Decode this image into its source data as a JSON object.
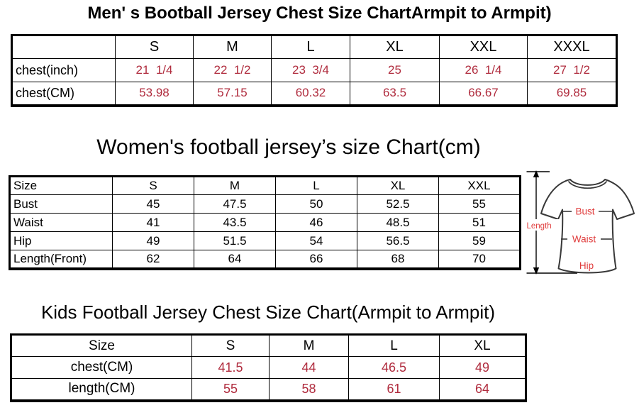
{
  "colors": {
    "value_red": "#b02c3e",
    "label_red": "#e03c3c",
    "outline_dark": "#383838",
    "text_black": "#000000",
    "background": "#ffffff"
  },
  "titles": {
    "men": "Men' s Bootball Jersey Chest Size ChartArmpit to Armpit)",
    "women": "Women's football jersey’s size Chart(cm)",
    "kids": "Kids Football Jersey Chest Size Chart(Armpit to Armpit)"
  },
  "tables": {
    "men": {
      "columns": [
        "",
        "S",
        "M",
        "L",
        "XL",
        "XXL",
        "XXXL"
      ],
      "rows": [
        {
          "label": "chest(inch)",
          "values": [
            "21  1/4",
            "22  1/2",
            "23  3/4",
            "25",
            "26  1/4",
            "27  1/2"
          ],
          "value_color": "value_red"
        },
        {
          "label": "chest(CM)",
          "values": [
            "53.98",
            "57.15",
            "60.32",
            "63.5",
            "66.67",
            "69.85"
          ],
          "value_color": "value_red"
        }
      ]
    },
    "women": {
      "columns": [
        "Size",
        "S",
        "M",
        "L",
        "XL",
        "XXL"
      ],
      "rows": [
        {
          "label": "Bust",
          "values": [
            "45",
            "47.5",
            "50",
            "52.5",
            "55"
          ],
          "value_color": "text_black"
        },
        {
          "label": "Waist",
          "values": [
            "41",
            "43.5",
            "46",
            "48.5",
            "51"
          ],
          "value_color": "text_black"
        },
        {
          "label": "Hip",
          "values": [
            "49",
            "51.5",
            "54",
            "56.5",
            "59"
          ],
          "value_color": "text_black"
        },
        {
          "label": "Length(Front)",
          "values": [
            "62",
            "64",
            "66",
            "68",
            "70"
          ],
          "value_color": "text_black"
        }
      ]
    },
    "kids": {
      "columns": [
        "Size",
        "S",
        "M",
        "L",
        "XL"
      ],
      "rows": [
        {
          "label": "chest(CM)",
          "values": [
            "41.5",
            "44",
            "46.5",
            "49"
          ],
          "value_color": "value_red"
        },
        {
          "label": "length(CM)",
          "values": [
            "55",
            "58",
            "61",
            "64"
          ],
          "value_color": "value_red"
        }
      ]
    }
  },
  "diagram": {
    "length_label": "Length",
    "bust_label": "Bust",
    "waist_label": "Waist",
    "hip_label": "Hip"
  }
}
